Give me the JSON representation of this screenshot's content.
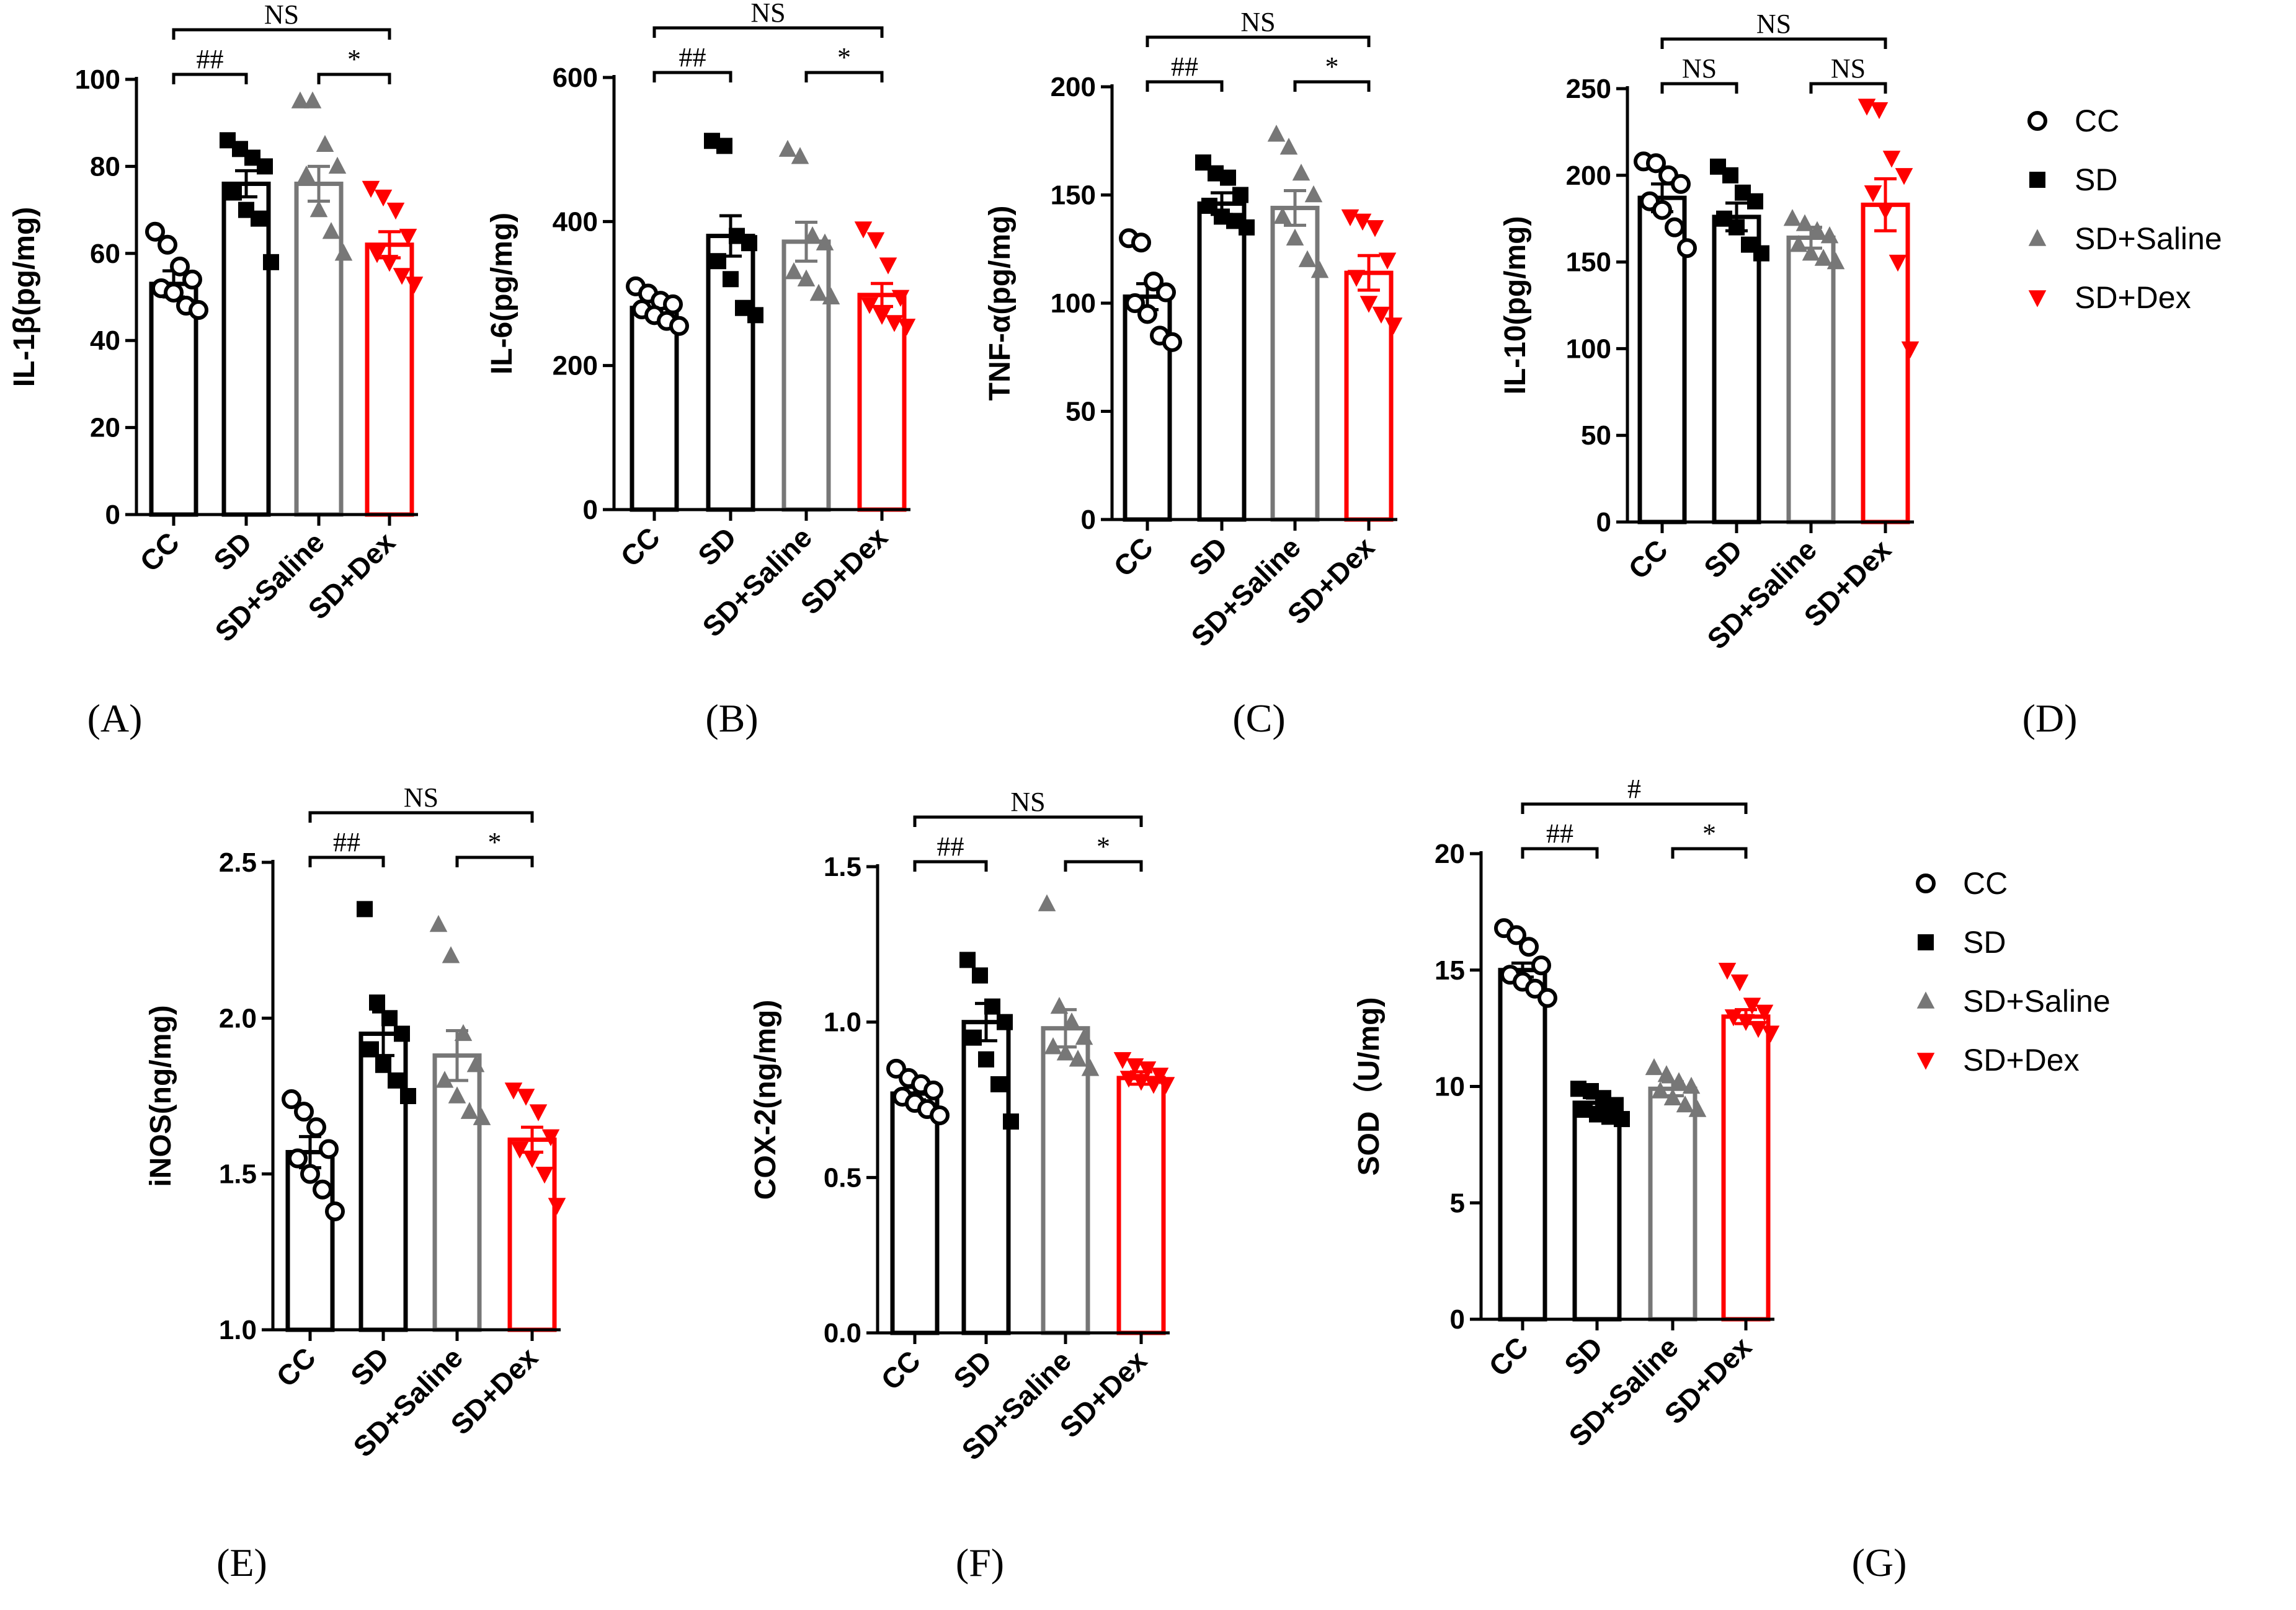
{
  "groups": [
    "CC",
    "SD",
    "SD+Saline",
    "SD+Dex"
  ],
  "colors": {
    "CC": "#000000",
    "SD": "#000000",
    "SD+Saline": "#777777",
    "SD+Dex": "#ff0000"
  },
  "legend": {
    "labels": [
      "CC",
      "SD",
      "SD+Saline",
      "SD+Dex"
    ],
    "markers": [
      "open-circle",
      "square",
      "triangle-up",
      "triangle-down"
    ]
  },
  "chart_data": [
    {
      "id": "A",
      "panel_label": "(A)",
      "type": "bar",
      "title": "",
      "ylabel": "IL-1β(pg/mg)",
      "ylim": [
        0,
        100
      ],
      "yticks": [
        0,
        20,
        40,
        60,
        80,
        100
      ],
      "ytick_labels": [
        "0",
        "20",
        "40",
        "60",
        "80",
        "100"
      ],
      "categories": [
        "CC",
        "SD",
        "SD+Saline",
        "SD+Dex"
      ],
      "values": [
        53,
        76,
        76,
        62
      ],
      "errors": [
        3,
        3,
        4,
        3
      ],
      "points": [
        [
          65,
          62,
          57,
          54,
          52,
          51,
          48,
          47
        ],
        [
          86,
          84,
          82,
          80,
          74,
          70,
          68,
          58
        ],
        [
          95,
          95,
          85,
          80,
          78,
          70,
          65,
          60
        ],
        [
          75,
          73,
          70,
          64,
          60,
          58,
          55,
          53
        ]
      ],
      "brackets": [
        {
          "from": 0,
          "to": 3,
          "label": "NS",
          "level": 2
        },
        {
          "from": 0,
          "to": 1,
          "label": "##",
          "level": 1
        },
        {
          "from": 2,
          "to": 3,
          "label": "*",
          "level": 1
        }
      ]
    },
    {
      "id": "B",
      "panel_label": "(B)",
      "type": "bar",
      "title": "",
      "ylabel": "IL-6(pg/mg)",
      "ylim": [
        0,
        600
      ],
      "yticks": [
        0,
        200,
        400,
        600
      ],
      "ytick_labels": [
        "0",
        "200",
        "400",
        "600"
      ],
      "categories": [
        "CC",
        "SD",
        "SD+Saline",
        "SD+Dex"
      ],
      "values": [
        280,
        380,
        372,
        298
      ],
      "errors": [
        10,
        28,
        27,
        16
      ],
      "points": [
        [
          310,
          300,
          290,
          285,
          278,
          270,
          262,
          255
        ],
        [
          512,
          505,
          380,
          370,
          345,
          320,
          280,
          270
        ],
        [
          500,
          490,
          380,
          370,
          330,
          320,
          300,
          295
        ],
        [
          390,
          375,
          340,
          295,
          285,
          270,
          260,
          255
        ]
      ],
      "brackets": [
        {
          "from": 0,
          "to": 3,
          "label": "NS",
          "level": 2
        },
        {
          "from": 0,
          "to": 1,
          "label": "##",
          "level": 1
        },
        {
          "from": 2,
          "to": 3,
          "label": "*",
          "level": 1
        }
      ]
    },
    {
      "id": "C",
      "panel_label": "(C)",
      "type": "bar",
      "title": "",
      "ylabel": "TNF-α(pg/mg)",
      "ylim": [
        0,
        200
      ],
      "yticks": [
        0,
        50,
        100,
        150,
        200
      ],
      "ytick_labels": [
        "0",
        "50",
        "100",
        "150",
        "200"
      ],
      "categories": [
        "CC",
        "SD",
        "SD+Saline",
        "SD+Dex"
      ],
      "values": [
        103,
        146,
        144,
        114
      ],
      "errors": [
        6,
        5,
        8,
        8
      ],
      "points": [
        [
          130,
          128,
          110,
          105,
          100,
          95,
          85,
          82
        ],
        [
          165,
          160,
          158,
          150,
          145,
          140,
          138,
          135
        ],
        [
          178,
          172,
          160,
          150,
          140,
          130,
          120,
          115
        ],
        [
          140,
          138,
          135,
          120,
          112,
          100,
          95,
          90
        ]
      ],
      "brackets": [
        {
          "from": 0,
          "to": 3,
          "label": "NS",
          "level": 2
        },
        {
          "from": 0,
          "to": 1,
          "label": "##",
          "level": 1
        },
        {
          "from": 2,
          "to": 3,
          "label": "*",
          "level": 1
        }
      ]
    },
    {
      "id": "D",
      "panel_label": "(D)",
      "type": "bar",
      "title": "",
      "ylabel": "IL-10(pg/mg)",
      "ylim": [
        0,
        250
      ],
      "yticks": [
        0,
        50,
        100,
        150,
        200,
        250
      ],
      "ytick_labels": [
        "0",
        "50",
        "100",
        "150",
        "200",
        "250"
      ],
      "categories": [
        "CC",
        "SD",
        "SD+Saline",
        "SD+Dex"
      ],
      "values": [
        187,
        176,
        164,
        183
      ],
      "errors": [
        8,
        8,
        6,
        15
      ],
      "points": [
        [
          208,
          207,
          200,
          195,
          185,
          180,
          170,
          158
        ],
        [
          205,
          200,
          190,
          185,
          175,
          170,
          160,
          155
        ],
        [
          175,
          172,
          168,
          165,
          160,
          155,
          152,
          150
        ],
        [
          240,
          238,
          210,
          200,
          190,
          180,
          150,
          100
        ]
      ],
      "brackets": [
        {
          "from": 0,
          "to": 3,
          "label": "NS",
          "level": 2
        },
        {
          "from": 0,
          "to": 1,
          "label": "NS",
          "level": 1
        },
        {
          "from": 2,
          "to": 3,
          "label": "NS",
          "level": 1
        }
      ]
    },
    {
      "id": "E",
      "panel_label": "(E)",
      "type": "bar",
      "title": "",
      "ylabel": "iNOS(ng/mg)",
      "ylim": [
        1.0,
        2.5
      ],
      "yticks": [
        1.0,
        1.5,
        2.0,
        2.5
      ],
      "ytick_labels": [
        "1.0",
        "1.5",
        "2.0",
        "2.5"
      ],
      "categories": [
        "CC",
        "SD",
        "SD+Saline",
        "SD+Dex"
      ],
      "values": [
        1.57,
        1.95,
        1.88,
        1.61
      ],
      "errors": [
        0.05,
        0.07,
        0.08,
        0.04
      ],
      "points": [
        [
          1.74,
          1.7,
          1.65,
          1.58,
          1.55,
          1.5,
          1.45,
          1.38
        ],
        [
          2.35,
          2.05,
          2.0,
          1.95,
          1.9,
          1.85,
          1.8,
          1.75
        ],
        [
          2.3,
          2.2,
          1.95,
          1.85,
          1.8,
          1.75,
          1.7,
          1.68
        ],
        [
          1.77,
          1.75,
          1.7,
          1.62,
          1.58,
          1.55,
          1.5,
          1.4
        ]
      ],
      "brackets": [
        {
          "from": 0,
          "to": 3,
          "label": "NS",
          "level": 2
        },
        {
          "from": 0,
          "to": 1,
          "label": "##",
          "level": 1
        },
        {
          "from": 2,
          "to": 3,
          "label": "*",
          "level": 1
        }
      ]
    },
    {
      "id": "F",
      "panel_label": "(F)",
      "type": "bar",
      "title": "",
      "ylabel": "COX-2(ng/mg)",
      "ylim": [
        0,
        1.5
      ],
      "yticks": [
        0.0,
        0.5,
        1.0,
        1.5
      ],
      "ytick_labels": [
        "0.0",
        "0.5",
        "1.0",
        "1.5"
      ],
      "categories": [
        "CC",
        "SD",
        "SD+Saline",
        "SD+Dex"
      ],
      "values": [
        0.77,
        1.0,
        0.98,
        0.82
      ],
      "errors": [
        0.02,
        0.06,
        0.06,
        0.02
      ],
      "points": [
        [
          0.85,
          0.82,
          0.8,
          0.78,
          0.76,
          0.74,
          0.72,
          0.7
        ],
        [
          1.2,
          1.15,
          1.05,
          1.0,
          0.95,
          0.88,
          0.8,
          0.68
        ],
        [
          1.38,
          1.05,
          1.0,
          0.95,
          0.92,
          0.9,
          0.88,
          0.85
        ],
        [
          0.88,
          0.86,
          0.85,
          0.83,
          0.82,
          0.81,
          0.8,
          0.8
        ]
      ],
      "brackets": [
        {
          "from": 0,
          "to": 3,
          "label": "NS",
          "level": 2
        },
        {
          "from": 0,
          "to": 1,
          "label": "##",
          "level": 1
        },
        {
          "from": 2,
          "to": 3,
          "label": "*",
          "level": 1
        }
      ]
    },
    {
      "id": "G",
      "panel_label": "(G)",
      "type": "bar",
      "title": "",
      "ylabel": "SOD（U/mg)",
      "ylim": [
        0,
        20
      ],
      "yticks": [
        0,
        5,
        10,
        15,
        20
      ],
      "ytick_labels": [
        "0",
        "5",
        "10",
        "15",
        "20"
      ],
      "categories": [
        "CC",
        "SD",
        "SD+Saline",
        "SD+Dex"
      ],
      "values": [
        15.0,
        9.3,
        9.9,
        13.0
      ],
      "errors": [
        0.3,
        0.2,
        0.3,
        0.3
      ],
      "points": [
        [
          16.8,
          16.5,
          16.0,
          15.2,
          14.8,
          14.5,
          14.2,
          13.8
        ],
        [
          9.9,
          9.8,
          9.5,
          9.2,
          9.0,
          8.8,
          8.7,
          8.6
        ],
        [
          10.8,
          10.5,
          10.2,
          10.0,
          9.8,
          9.5,
          9.2,
          9.0
        ],
        [
          15.0,
          14.5,
          13.5,
          13.2,
          13.0,
          12.8,
          12.5,
          12.3
        ]
      ],
      "brackets": [
        {
          "from": 0,
          "to": 3,
          "label": "#",
          "level": 2
        },
        {
          "from": 0,
          "to": 1,
          "label": "##",
          "level": 1
        },
        {
          "from": 2,
          "to": 3,
          "label": "*",
          "level": 1
        }
      ]
    }
  ]
}
